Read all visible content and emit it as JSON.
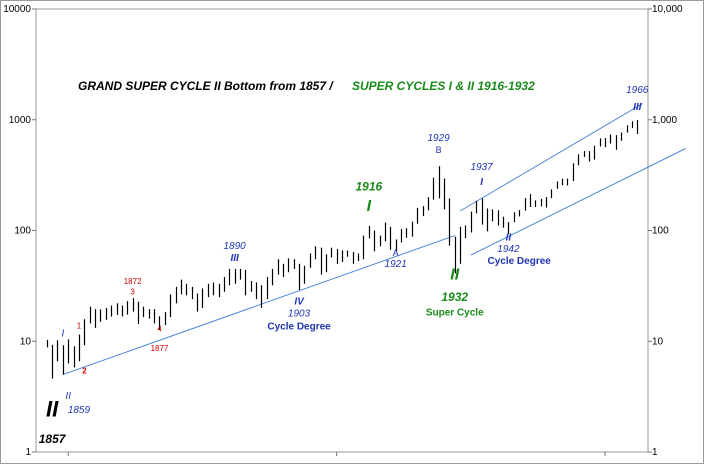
{
  "chart_data": {
    "type": "bar",
    "subtype": "ohlc-range-bars",
    "scale": "log",
    "ylim": [
      1,
      10000
    ],
    "y_ticks_left": [
      "1",
      "10",
      "100",
      "1000",
      "10000"
    ],
    "y_ticks_right": [
      "1",
      "10",
      "100",
      "1,000",
      "10,000"
    ],
    "title": {
      "part1": "GRAND SUPER CYCLE II Bottom from 1857  /",
      "part2": "SUPER CYCLES I & II 1916-1932"
    },
    "x_range": [
      1854,
      1968
    ],
    "bars": [
      {
        "x": 1856,
        "low": 8.8,
        "high": 10.3
      },
      {
        "x": 1857,
        "low": 4.6,
        "high": 9.3
      },
      {
        "x": 1858,
        "low": 6.6,
        "high": 10.2
      },
      {
        "x": 1859,
        "low": 5.0,
        "high": 9.2
      },
      {
        "x": 1860,
        "low": 6.3,
        "high": 10.4
      },
      {
        "x": 1861,
        "low": 5.8,
        "high": 9.0
      },
      {
        "x": 1862,
        "low": 6.6,
        "high": 11.5
      },
      {
        "x": 1863,
        "low": 9.2,
        "high": 15.8
      },
      {
        "x": 1864,
        "low": 14.5,
        "high": 20.5
      },
      {
        "x": 1865,
        "low": 13.2,
        "high": 19.5
      },
      {
        "x": 1866,
        "low": 15.0,
        "high": 19.4
      },
      {
        "x": 1867,
        "low": 15.6,
        "high": 20.0
      },
      {
        "x": 1868,
        "low": 16.7,
        "high": 21.0
      },
      {
        "x": 1869,
        "low": 17.3,
        "high": 22.0
      },
      {
        "x": 1870,
        "low": 16.8,
        "high": 21.0
      },
      {
        "x": 1871,
        "low": 17.4,
        "high": 23.0
      },
      {
        "x": 1872,
        "low": 18.5,
        "high": 24.5
      },
      {
        "x": 1873,
        "low": 14.3,
        "high": 22.8
      },
      {
        "x": 1874,
        "low": 16.5,
        "high": 20.5
      },
      {
        "x": 1875,
        "low": 16.0,
        "high": 19.5
      },
      {
        "x": 1876,
        "low": 14.5,
        "high": 19.5
      },
      {
        "x": 1877,
        "low": 12.7,
        "high": 16.8
      },
      {
        "x": 1878,
        "low": 14.0,
        "high": 18.3
      },
      {
        "x": 1879,
        "low": 16.5,
        "high": 26.5
      },
      {
        "x": 1880,
        "low": 22.0,
        "high": 31.0
      },
      {
        "x": 1881,
        "low": 26.5,
        "high": 36.0
      },
      {
        "x": 1882,
        "low": 26.0,
        "high": 33.0
      },
      {
        "x": 1883,
        "low": 24.0,
        "high": 31.0
      },
      {
        "x": 1884,
        "low": 18.5,
        "high": 27.0
      },
      {
        "x": 1885,
        "low": 20.0,
        "high": 30.0
      },
      {
        "x": 1886,
        "low": 25.0,
        "high": 33.0
      },
      {
        "x": 1887,
        "low": 26.0,
        "high": 34.0
      },
      {
        "x": 1888,
        "low": 25.0,
        "high": 33.0
      },
      {
        "x": 1889,
        "low": 28.0,
        "high": 38.0
      },
      {
        "x": 1890,
        "low": 32.0,
        "high": 45.0
      },
      {
        "x": 1891,
        "low": 33.0,
        "high": 45.0
      },
      {
        "x": 1892,
        "low": 36.0,
        "high": 45.0
      },
      {
        "x": 1893,
        "low": 26.0,
        "high": 44.0
      },
      {
        "x": 1894,
        "low": 28.0,
        "high": 35.0
      },
      {
        "x": 1895,
        "low": 24.0,
        "high": 34.0
      },
      {
        "x": 1896,
        "low": 20.0,
        "high": 32.0
      },
      {
        "x": 1897,
        "low": 24.0,
        "high": 38.0
      },
      {
        "x": 1898,
        "low": 32.0,
        "high": 45.0
      },
      {
        "x": 1899,
        "low": 40.0,
        "high": 55.0
      },
      {
        "x": 1900,
        "low": 38.0,
        "high": 50.0
      },
      {
        "x": 1901,
        "low": 42.0,
        "high": 56.0
      },
      {
        "x": 1902,
        "low": 45.0,
        "high": 55.0
      },
      {
        "x": 1903,
        "low": 29.0,
        "high": 50.0
      },
      {
        "x": 1904,
        "low": 33.0,
        "high": 48.0
      },
      {
        "x": 1905,
        "low": 46.0,
        "high": 62.0
      },
      {
        "x": 1906,
        "low": 55.0,
        "high": 72.0
      },
      {
        "x": 1907,
        "low": 40.0,
        "high": 70.0
      },
      {
        "x": 1908,
        "low": 42.0,
        "high": 61.0
      },
      {
        "x": 1909,
        "low": 57.0,
        "high": 70.0
      },
      {
        "x": 1910,
        "low": 50.0,
        "high": 68.0
      },
      {
        "x": 1911,
        "low": 52.0,
        "high": 66.0
      },
      {
        "x": 1912,
        "low": 58.0,
        "high": 66.0
      },
      {
        "x": 1913,
        "low": 50.0,
        "high": 64.0
      },
      {
        "x": 1914,
        "low": 53.0,
        "high": 62.0
      },
      {
        "x": 1915,
        "low": 55.0,
        "high": 90.0
      },
      {
        "x": 1916,
        "low": 85.0,
        "high": 110.0
      },
      {
        "x": 1917,
        "low": 65.0,
        "high": 100.0
      },
      {
        "x": 1918,
        "low": 72.0,
        "high": 90.0
      },
      {
        "x": 1919,
        "low": 80.0,
        "high": 118.0
      },
      {
        "x": 1920,
        "low": 67.0,
        "high": 108.0
      },
      {
        "x": 1921,
        "low": 64.0,
        "high": 83.0
      },
      {
        "x": 1922,
        "low": 78.0,
        "high": 103.0
      },
      {
        "x": 1923,
        "low": 86.0,
        "high": 105.0
      },
      {
        "x": 1924,
        "low": 88.0,
        "high": 120.0
      },
      {
        "x": 1925,
        "low": 115.0,
        "high": 160.0
      },
      {
        "x": 1926,
        "low": 135.0,
        "high": 166.0
      },
      {
        "x": 1927,
        "low": 152.0,
        "high": 200.0
      },
      {
        "x": 1928,
        "low": 190.0,
        "high": 300.0
      },
      {
        "x": 1929,
        "low": 195.0,
        "high": 381.0
      },
      {
        "x": 1930,
        "low": 155.0,
        "high": 295.0
      },
      {
        "x": 1931,
        "low": 73.0,
        "high": 195.0
      },
      {
        "x": 1932,
        "low": 41.0,
        "high": 88.0
      },
      {
        "x": 1933,
        "low": 50.0,
        "high": 108.0
      },
      {
        "x": 1934,
        "low": 85.0,
        "high": 111.0
      },
      {
        "x": 1935,
        "low": 96.0,
        "high": 148.0
      },
      {
        "x": 1936,
        "low": 143.0,
        "high": 185.0
      },
      {
        "x": 1937,
        "low": 113.0,
        "high": 195.0
      },
      {
        "x": 1938,
        "low": 98.0,
        "high": 158.0
      },
      {
        "x": 1939,
        "low": 121.0,
        "high": 155.0
      },
      {
        "x": 1940,
        "low": 111.0,
        "high": 152.0
      },
      {
        "x": 1941,
        "low": 106.0,
        "high": 133.0
      },
      {
        "x": 1942,
        "low": 93.0,
        "high": 119.0
      },
      {
        "x": 1943,
        "low": 119.0,
        "high": 146.0
      },
      {
        "x": 1944,
        "low": 134.0,
        "high": 153.0
      },
      {
        "x": 1945,
        "low": 151.0,
        "high": 196.0
      },
      {
        "x": 1946,
        "low": 163.0,
        "high": 213.0
      },
      {
        "x": 1947,
        "low": 163.0,
        "high": 187.0
      },
      {
        "x": 1948,
        "low": 165.0,
        "high": 193.0
      },
      {
        "x": 1949,
        "low": 161.0,
        "high": 200.0
      },
      {
        "x": 1950,
        "low": 196.0,
        "high": 235.0
      },
      {
        "x": 1951,
        "low": 238.0,
        "high": 277.0
      },
      {
        "x": 1952,
        "low": 256.0,
        "high": 293.0
      },
      {
        "x": 1953,
        "low": 255.0,
        "high": 294.0
      },
      {
        "x": 1954,
        "low": 279.0,
        "high": 404.0
      },
      {
        "x": 1955,
        "low": 388.0,
        "high": 488.0
      },
      {
        "x": 1956,
        "low": 462.0,
        "high": 521.0
      },
      {
        "x": 1957,
        "low": 420.0,
        "high": 520.0
      },
      {
        "x": 1958,
        "low": 436.0,
        "high": 583.0
      },
      {
        "x": 1959,
        "low": 574.0,
        "high": 679.0
      },
      {
        "x": 1960,
        "low": 566.0,
        "high": 685.0
      },
      {
        "x": 1961,
        "low": 610.0,
        "high": 735.0
      },
      {
        "x": 1962,
        "low": 536.0,
        "high": 726.0
      },
      {
        "x": 1963,
        "low": 647.0,
        "high": 767.0
      },
      {
        "x": 1964,
        "low": 766.0,
        "high": 891.0
      },
      {
        "x": 1965,
        "low": 840.0,
        "high": 969.0
      },
      {
        "x": 1966,
        "low": 744.0,
        "high": 995.0
      }
    ],
    "trendlines": [
      {
        "x1": 1859,
        "y1": 5.0,
        "x2": 1932,
        "y2": 90.0
      },
      {
        "x1": 1933,
        "y1": 150.0,
        "x2": 1967,
        "y2": 1400.0
      },
      {
        "x1": 1935,
        "y1": 60.0,
        "x2": 1975,
        "y2": 550.0
      }
    ],
    "annotations": [
      {
        "text": "II",
        "x": 1857,
        "y": 2.1,
        "color": "#000000",
        "size": 22,
        "weight": "bold",
        "italic": true
      },
      {
        "text": "1857",
        "x": 1857,
        "y": 1.2,
        "color": "#000000",
        "size": 12,
        "weight": "bold",
        "italic": true
      },
      {
        "text": "I",
        "x": 1859,
        "y": 11.0,
        "color": "#1f35b0",
        "size": 10,
        "weight": "normal",
        "italic": true
      },
      {
        "text": "II",
        "x": 1860,
        "y": 3.0,
        "color": "#1f35b0",
        "size": 10,
        "weight": "normal",
        "italic": true
      },
      {
        "text": "1859",
        "x": 1862,
        "y": 2.25,
        "color": "#1f35b0",
        "size": 10,
        "weight": "normal",
        "italic": true
      },
      {
        "text": "1",
        "x": 1862,
        "y": 13.0,
        "color": "#cc0000",
        "size": 8,
        "weight": "normal",
        "italic": false
      },
      {
        "text": "2",
        "x": 1863,
        "y": 5.1,
        "color": "#cc0000",
        "size": 8,
        "weight": "bold",
        "italic": false
      },
      {
        "text": "1872",
        "x": 1872,
        "y": 33.0,
        "color": "#cc0000",
        "size": 8,
        "weight": "normal",
        "italic": false
      },
      {
        "text": "3",
        "x": 1872,
        "y": 26.5,
        "color": "#cc0000",
        "size": 8,
        "weight": "normal",
        "italic": false
      },
      {
        "text": "4",
        "x": 1877,
        "y": 12.3,
        "color": "#cc0000",
        "size": 8,
        "weight": "normal",
        "italic": false
      },
      {
        "text": "1877",
        "x": 1877,
        "y": 8.2,
        "color": "#cc0000",
        "size": 8,
        "weight": "normal",
        "italic": false
      },
      {
        "text": "1890",
        "x": 1891,
        "y": 68.0,
        "color": "#1f35b0",
        "size": 10,
        "weight": "normal",
        "italic": true
      },
      {
        "text": "III",
        "x": 1891,
        "y": 53.0,
        "color": "#1f35b0",
        "size": 10,
        "weight": "bold",
        "italic": true
      },
      {
        "text": "IV",
        "x": 1903,
        "y": 21.5,
        "color": "#1f35b0",
        "size": 10,
        "weight": "bold",
        "italic": true
      },
      {
        "text": "1903",
        "x": 1903,
        "y": 16.8,
        "color": "#1f35b0",
        "size": 10,
        "weight": "normal",
        "italic": true
      },
      {
        "text": "Cycle Degree",
        "x": 1903,
        "y": 12.8,
        "color": "#1f35b0",
        "size": 10,
        "weight": "bold",
        "italic": false
      },
      {
        "text": "1916",
        "x": 1916,
        "y": 230.0,
        "color": "#1a8a1a",
        "size": 12,
        "weight": "bold",
        "italic": true
      },
      {
        "text": "I",
        "x": 1916,
        "y": 150.0,
        "color": "#1a8a1a",
        "size": 16,
        "weight": "bold",
        "italic": true
      },
      {
        "text": "A",
        "x": 1921,
        "y": 59.0,
        "color": "#1f35b0",
        "size": 9,
        "weight": "normal",
        "italic": false
      },
      {
        "text": "1921",
        "x": 1921,
        "y": 47.0,
        "color": "#1f35b0",
        "size": 10,
        "weight": "normal",
        "italic": true
      },
      {
        "text": "1929",
        "x": 1929,
        "y": 640.0,
        "color": "#1f35b0",
        "size": 10,
        "weight": "normal",
        "italic": true
      },
      {
        "text": "B",
        "x": 1929,
        "y": 500.0,
        "color": "#1f35b0",
        "size": 9,
        "weight": "normal",
        "italic": false
      },
      {
        "text": "II",
        "x": 1932,
        "y": 36.0,
        "color": "#1a8a1a",
        "size": 16,
        "weight": "bold",
        "italic": true
      },
      {
        "text": "1932",
        "x": 1932,
        "y": 23.0,
        "color": "#1a8a1a",
        "size": 12,
        "weight": "bold",
        "italic": true
      },
      {
        "text": "Super Cycle",
        "x": 1932,
        "y": 17.0,
        "color": "#1a8a1a",
        "size": 10,
        "weight": "bold",
        "italic": false
      },
      {
        "text": "1937",
        "x": 1937,
        "y": 350.0,
        "color": "#1f35b0",
        "size": 10,
        "weight": "normal",
        "italic": true
      },
      {
        "text": "I",
        "x": 1937,
        "y": 258.0,
        "color": "#1f35b0",
        "size": 10,
        "weight": "bold",
        "italic": true
      },
      {
        "text": "II",
        "x": 1942,
        "y": 81.0,
        "color": "#1f35b0",
        "size": 10,
        "weight": "bold",
        "italic": true
      },
      {
        "text": "1942",
        "x": 1942,
        "y": 64.0,
        "color": "#1f35b0",
        "size": 10,
        "weight": "normal",
        "italic": true
      },
      {
        "text": "Cycle Degree",
        "x": 1944,
        "y": 50.0,
        "color": "#1f35b0",
        "size": 10,
        "weight": "bold",
        "italic": false
      },
      {
        "text": "1966",
        "x": 1966,
        "y": 1750.0,
        "color": "#1f35b0",
        "size": 10,
        "weight": "normal",
        "italic": true
      },
      {
        "text": "III",
        "x": 1966,
        "y": 1230.0,
        "color": "#1f35b0",
        "size": 10,
        "weight": "bold",
        "italic": true
      }
    ]
  }
}
